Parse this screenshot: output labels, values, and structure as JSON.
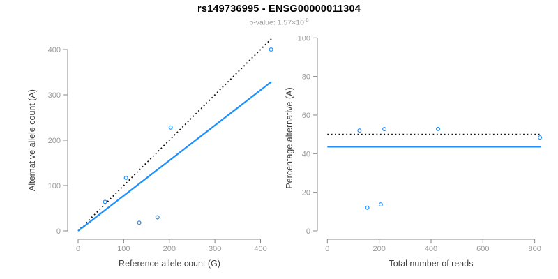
{
  "header": {
    "title": "rs149736995 - ENSG00000011304",
    "pvalue_base": "p-value: 1.57×10",
    "pvalue_exponent": "-8"
  },
  "colors": {
    "accent_blue": "#1E90FF",
    "dotted_black": "#111111",
    "axis_line": "#888888",
    "tick_label": "#9a9a9a",
    "axis_title": "#404040"
  },
  "chart_data": [
    {
      "type": "scatter",
      "xlabel": "Reference allele count (G)",
      "ylabel": "Alternative allele count (A)",
      "xticks": [
        0,
        100,
        200,
        300,
        400
      ],
      "yticks": [
        0,
        100,
        200,
        300,
        400
      ],
      "xlim": [
        0,
        430
      ],
      "ylim": [
        0,
        425
      ],
      "grid": false,
      "points": [
        [
          59,
          64
        ],
        [
          105,
          117
        ],
        [
          134,
          18
        ],
        [
          174,
          30
        ],
        [
          203,
          228
        ],
        [
          423,
          400
        ]
      ],
      "lines": [
        {
          "name": "identity-line",
          "style": "dotted",
          "color": "#111111",
          "x1": 0,
          "y1": 0,
          "x2": 425,
          "y2": 425
        },
        {
          "name": "regression-line",
          "style": "solid",
          "color": "#1E90FF",
          "x1": 0,
          "y1": 0,
          "x2": 424,
          "y2": 329
        }
      ]
    },
    {
      "type": "scatter",
      "xlabel": "Total number of reads",
      "ylabel": "Percentage alternative (A)",
      "xticks": [
        0,
        200,
        400,
        600,
        800
      ],
      "yticks": [
        0,
        20,
        40,
        60,
        80,
        100
      ],
      "xlim": [
        0,
        825
      ],
      "ylim": [
        0,
        100
      ],
      "grid": false,
      "points": [
        [
          124,
          52
        ],
        [
          154,
          12
        ],
        [
          206,
          13.7
        ],
        [
          220,
          52.7
        ],
        [
          427,
          52.8
        ],
        [
          820,
          48.4
        ]
      ],
      "lines": [
        {
          "name": "expected-50pct-line",
          "style": "dotted",
          "color": "#111111",
          "x1": 0,
          "y1": 50,
          "x2": 825,
          "y2": 50
        },
        {
          "name": "observed-ratio-line",
          "style": "solid",
          "color": "#1E90FF",
          "x1": 0,
          "y1": 43.6,
          "x2": 825,
          "y2": 43.6
        }
      ]
    }
  ]
}
